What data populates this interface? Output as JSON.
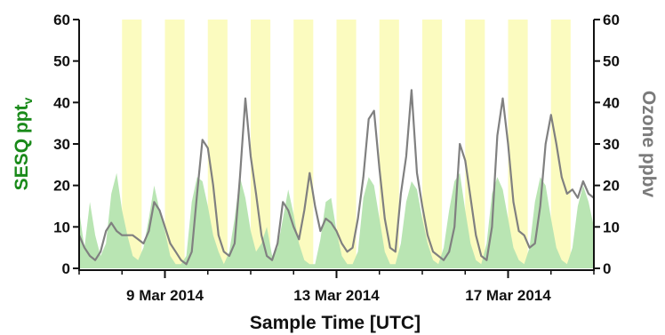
{
  "chart_data": {
    "type": "area",
    "xlabel": "Sample Time [UTC]",
    "x_ticks": [
      "9 Mar 2014",
      "13 Mar 2014",
      "17 Mar 2014"
    ],
    "xlim": [
      "2014-03-07",
      "2014-03-19"
    ],
    "ylabel_left": "SESQ ppt",
    "ylabel_left_sub": "v",
    "ylabel_right": "Ozone ppbv",
    "ylim_left": [
      0,
      60
    ],
    "ylim_right": [
      0,
      60
    ],
    "y_ticks": [
      "0",
      "10",
      "20",
      "30",
      "40",
      "50",
      "60"
    ],
    "grid": false,
    "daytime_shading": [
      [
        "2014-03-08 00:00",
        "2014-03-08 11:00"
      ],
      [
        "2014-03-09 00:00",
        "2014-03-09 11:00"
      ],
      [
        "2014-03-10 00:00",
        "2014-03-10 11:00"
      ],
      [
        "2014-03-11 00:00",
        "2014-03-11 11:00"
      ],
      [
        "2014-03-12 00:00",
        "2014-03-12 11:00"
      ],
      [
        "2014-03-13 00:00",
        "2014-03-13 11:00"
      ],
      [
        "2014-03-14 00:00",
        "2014-03-14 11:00"
      ],
      [
        "2014-03-15 00:00",
        "2014-03-15 11:00"
      ],
      [
        "2014-03-16 00:00",
        "2014-03-16 11:00"
      ],
      [
        "2014-03-17 00:00",
        "2014-03-17 11:00"
      ],
      [
        "2014-03-18 00:00",
        "2014-03-18 11:00"
      ]
    ],
    "series": [
      {
        "axis": "left",
        "kind": "area",
        "points": [
          [
            "2014-03-07 00:00",
            14
          ],
          [
            "2014-03-07 03:00",
            5
          ],
          [
            "2014-03-07 06:00",
            16
          ],
          [
            "2014-03-07 09:00",
            8
          ],
          [
            "2014-03-07 12:00",
            3
          ],
          [
            "2014-03-07 15:00",
            6
          ],
          [
            "2014-03-07 18:00",
            18
          ],
          [
            "2014-03-07 21:00",
            23
          ],
          [
            "2014-03-08 00:00",
            14
          ],
          [
            "2014-03-08 03:00",
            8
          ],
          [
            "2014-03-08 06:00",
            3
          ],
          [
            "2014-03-08 09:00",
            2
          ],
          [
            "2014-03-08 12:00",
            5
          ],
          [
            "2014-03-08 15:00",
            12
          ],
          [
            "2014-03-08 18:00",
            20
          ],
          [
            "2014-03-08 21:00",
            14
          ],
          [
            "2014-03-09 00:00",
            9
          ],
          [
            "2014-03-09 03:00",
            3
          ],
          [
            "2014-03-09 06:00",
            1
          ],
          [
            "2014-03-09 09:00",
            1
          ],
          [
            "2014-03-09 12:00",
            3
          ],
          [
            "2014-03-09 15:00",
            16
          ],
          [
            "2014-03-09 18:00",
            22
          ],
          [
            "2014-03-09 21:00",
            21
          ],
          [
            "2014-03-10 00:00",
            15
          ],
          [
            "2014-03-10 03:00",
            8
          ],
          [
            "2014-03-10 06:00",
            4
          ],
          [
            "2014-03-10 09:00",
            1
          ],
          [
            "2014-03-10 12:00",
            4
          ],
          [
            "2014-03-10 15:00",
            12
          ],
          [
            "2014-03-10 18:00",
            22
          ],
          [
            "2014-03-10 21:00",
            17
          ],
          [
            "2014-03-11 00:00",
            9
          ],
          [
            "2014-03-11 03:00",
            4
          ],
          [
            "2014-03-11 06:00",
            6
          ],
          [
            "2014-03-11 09:00",
            10
          ],
          [
            "2014-03-11 12:00",
            3
          ],
          [
            "2014-03-11 15:00",
            5
          ],
          [
            "2014-03-11 18:00",
            12
          ],
          [
            "2014-03-11 21:00",
            19
          ],
          [
            "2014-03-12 00:00",
            13
          ],
          [
            "2014-03-12 03:00",
            6
          ],
          [
            "2014-03-12 06:00",
            2
          ],
          [
            "2014-03-12 09:00",
            1
          ],
          [
            "2014-03-12 12:00",
            1
          ],
          [
            "2014-03-12 15:00",
            7
          ],
          [
            "2014-03-12 18:00",
            16
          ],
          [
            "2014-03-12 21:00",
            17
          ],
          [
            "2014-03-13 00:00",
            9
          ],
          [
            "2014-03-13 03:00",
            3
          ],
          [
            "2014-03-13 06:00",
            1
          ],
          [
            "2014-03-13 09:00",
            1
          ],
          [
            "2014-03-13 12:00",
            4
          ],
          [
            "2014-03-13 15:00",
            17
          ],
          [
            "2014-03-13 18:00",
            22
          ],
          [
            "2014-03-13 21:00",
            20
          ],
          [
            "2014-03-14 00:00",
            12
          ],
          [
            "2014-03-14 03:00",
            4
          ],
          [
            "2014-03-14 06:00",
            1
          ],
          [
            "2014-03-14 09:00",
            1
          ],
          [
            "2014-03-14 12:00",
            6
          ],
          [
            "2014-03-14 15:00",
            16
          ],
          [
            "2014-03-14 18:00",
            21
          ],
          [
            "2014-03-14 21:00",
            19
          ],
          [
            "2014-03-15 00:00",
            12
          ],
          [
            "2014-03-15 03:00",
            6
          ],
          [
            "2014-03-15 06:00",
            2
          ],
          [
            "2014-03-15 09:00",
            1
          ],
          [
            "2014-03-15 12:00",
            5
          ],
          [
            "2014-03-15 15:00",
            14
          ],
          [
            "2014-03-15 18:00",
            21
          ],
          [
            "2014-03-15 21:00",
            23
          ],
          [
            "2014-03-16 00:00",
            14
          ],
          [
            "2014-03-16 03:00",
            6
          ],
          [
            "2014-03-16 06:00",
            2
          ],
          [
            "2014-03-16 09:00",
            1
          ],
          [
            "2014-03-16 12:00",
            6
          ],
          [
            "2014-03-16 15:00",
            18
          ],
          [
            "2014-03-16 18:00",
            22
          ],
          [
            "2014-03-16 21:00",
            19
          ],
          [
            "2014-03-17 00:00",
            12
          ],
          [
            "2014-03-17 03:00",
            5
          ],
          [
            "2014-03-17 06:00",
            2
          ],
          [
            "2014-03-17 09:00",
            1
          ],
          [
            "2014-03-17 12:00",
            5
          ],
          [
            "2014-03-17 15:00",
            16
          ],
          [
            "2014-03-17 18:00",
            22
          ],
          [
            "2014-03-17 21:00",
            20
          ],
          [
            "2014-03-18 00:00",
            12
          ],
          [
            "2014-03-18 03:00",
            5
          ],
          [
            "2014-03-18 06:00",
            2
          ],
          [
            "2014-03-18 09:00",
            1
          ],
          [
            "2014-03-18 12:00",
            5
          ],
          [
            "2014-03-18 15:00",
            15
          ],
          [
            "2014-03-18 18:00",
            20
          ],
          [
            "2014-03-18 21:00",
            16
          ],
          [
            "2014-03-19 00:00",
            10
          ]
        ]
      },
      {
        "axis": "right",
        "kind": "line",
        "points": [
          [
            "2014-03-07 00:00",
            8
          ],
          [
            "2014-03-07 03:00",
            5
          ],
          [
            "2014-03-07 06:00",
            3
          ],
          [
            "2014-03-07 09:00",
            2
          ],
          [
            "2014-03-07 12:00",
            4
          ],
          [
            "2014-03-07 15:00",
            9
          ],
          [
            "2014-03-07 18:00",
            11
          ],
          [
            "2014-03-07 21:00",
            9
          ],
          [
            "2014-03-08 00:00",
            8
          ],
          [
            "2014-03-08 03:00",
            8
          ],
          [
            "2014-03-08 06:00",
            8
          ],
          [
            "2014-03-08 09:00",
            7
          ],
          [
            "2014-03-08 12:00",
            6
          ],
          [
            "2014-03-08 15:00",
            9
          ],
          [
            "2014-03-08 18:00",
            16
          ],
          [
            "2014-03-08 21:00",
            14
          ],
          [
            "2014-03-09 00:00",
            10
          ],
          [
            "2014-03-09 03:00",
            6
          ],
          [
            "2014-03-09 06:00",
            4
          ],
          [
            "2014-03-09 09:00",
            2
          ],
          [
            "2014-03-09 12:00",
            1
          ],
          [
            "2014-03-09 15:00",
            4
          ],
          [
            "2014-03-09 18:00",
            18
          ],
          [
            "2014-03-09 21:00",
            31
          ],
          [
            "2014-03-10 00:00",
            29
          ],
          [
            "2014-03-10 03:00",
            20
          ],
          [
            "2014-03-10 06:00",
            8
          ],
          [
            "2014-03-10 09:00",
            4
          ],
          [
            "2014-03-10 12:00",
            3
          ],
          [
            "2014-03-10 15:00",
            6
          ],
          [
            "2014-03-10 18:00",
            22
          ],
          [
            "2014-03-10 21:00",
            41
          ],
          [
            "2014-03-11 00:00",
            27
          ],
          [
            "2014-03-11 03:00",
            18
          ],
          [
            "2014-03-11 06:00",
            8
          ],
          [
            "2014-03-11 09:00",
            3
          ],
          [
            "2014-03-11 12:00",
            2
          ],
          [
            "2014-03-11 15:00",
            6
          ],
          [
            "2014-03-11 18:00",
            16
          ],
          [
            "2014-03-11 21:00",
            14
          ],
          [
            "2014-03-12 00:00",
            10
          ],
          [
            "2014-03-12 03:00",
            7
          ],
          [
            "2014-03-12 06:00",
            14
          ],
          [
            "2014-03-12 09:00",
            23
          ],
          [
            "2014-03-12 12:00",
            15
          ],
          [
            "2014-03-12 15:00",
            9
          ],
          [
            "2014-03-12 18:00",
            12
          ],
          [
            "2014-03-12 21:00",
            11
          ],
          [
            "2014-03-13 00:00",
            9
          ],
          [
            "2014-03-13 03:00",
            6
          ],
          [
            "2014-03-13 06:00",
            4
          ],
          [
            "2014-03-13 09:00",
            5
          ],
          [
            "2014-03-13 12:00",
            12
          ],
          [
            "2014-03-13 15:00",
            22
          ],
          [
            "2014-03-13 18:00",
            36
          ],
          [
            "2014-03-13 21:00",
            38
          ],
          [
            "2014-03-14 00:00",
            24
          ],
          [
            "2014-03-14 03:00",
            12
          ],
          [
            "2014-03-14 06:00",
            5
          ],
          [
            "2014-03-14 09:00",
            4
          ],
          [
            "2014-03-14 12:00",
            18
          ],
          [
            "2014-03-14 15:00",
            27
          ],
          [
            "2014-03-14 18:00",
            43
          ],
          [
            "2014-03-14 21:00",
            23
          ],
          [
            "2014-03-15 00:00",
            15
          ],
          [
            "2014-03-15 03:00",
            8
          ],
          [
            "2014-03-15 06:00",
            4
          ],
          [
            "2014-03-15 09:00",
            3
          ],
          [
            "2014-03-15 12:00",
            2
          ],
          [
            "2014-03-15 15:00",
            4
          ],
          [
            "2014-03-15 18:00",
            10
          ],
          [
            "2014-03-15 21:00",
            30
          ],
          [
            "2014-03-16 00:00",
            26
          ],
          [
            "2014-03-16 03:00",
            17
          ],
          [
            "2014-03-16 06:00",
            8
          ],
          [
            "2014-03-16 09:00",
            3
          ],
          [
            "2014-03-16 12:00",
            2
          ],
          [
            "2014-03-16 15:00",
            10
          ],
          [
            "2014-03-16 18:00",
            32
          ],
          [
            "2014-03-16 21:00",
            41
          ],
          [
            "2014-03-17 00:00",
            30
          ],
          [
            "2014-03-17 03:00",
            16
          ],
          [
            "2014-03-17 06:00",
            9
          ],
          [
            "2014-03-17 09:00",
            8
          ],
          [
            "2014-03-17 12:00",
            5
          ],
          [
            "2014-03-17 15:00",
            6
          ],
          [
            "2014-03-17 18:00",
            15
          ],
          [
            "2014-03-17 21:00",
            30
          ],
          [
            "2014-03-18 00:00",
            37
          ],
          [
            "2014-03-18 03:00",
            30
          ],
          [
            "2014-03-18 06:00",
            22
          ],
          [
            "2014-03-18 09:00",
            18
          ],
          [
            "2014-03-18 12:00",
            19
          ],
          [
            "2014-03-18 15:00",
            17
          ],
          [
            "2014-03-18 18:00",
            21
          ],
          [
            "2014-03-18 21:00",
            18
          ],
          [
            "2014-03-19 00:00",
            17
          ]
        ]
      }
    ]
  },
  "colors": {
    "daytime": "#fbfbbf",
    "sesq_fill": "#b9e5b3",
    "ozone_line": "#808080",
    "left_axis_label": "#1a8a1a",
    "right_axis_label": "#7a7a7a",
    "axis": "#111111"
  }
}
